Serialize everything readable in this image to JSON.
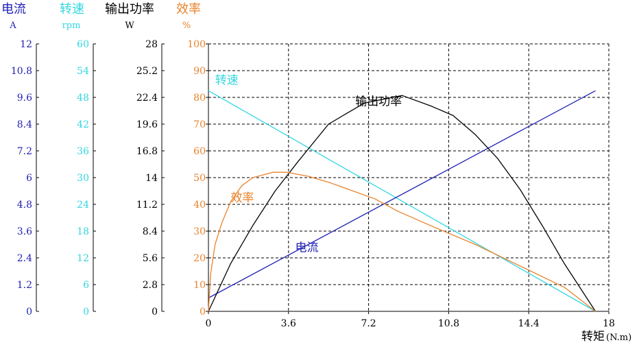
{
  "chart_data": {
    "type": "line",
    "x_axis": {
      "label": "转矩",
      "unit": "(N.m)",
      "range": [
        0,
        18
      ],
      "ticks": [
        "0",
        "3.6",
        "7.2",
        "10.8",
        "14.4",
        "18"
      ]
    },
    "y_axes": [
      {
        "id": "current",
        "title": "电流",
        "unit": "A",
        "color": "#1f1fb4",
        "range": [
          0,
          12
        ],
        "ticks": [
          "0",
          "1.2",
          "2.4",
          "3.6",
          "4.8",
          "6",
          "7.2",
          "8.4",
          "9.6",
          "10.8",
          "12"
        ]
      },
      {
        "id": "speed",
        "title": "转速",
        "unit": "rpm",
        "color": "#33d6e0",
        "range": [
          0,
          60
        ],
        "ticks": [
          "0",
          "6",
          "12",
          "18",
          "24",
          "30",
          "36",
          "42",
          "48",
          "54",
          "60"
        ]
      },
      {
        "id": "power",
        "title": "输出功率",
        "unit": "W",
        "color": "#000000",
        "range": [
          0,
          28
        ],
        "ticks": [
          "0",
          "2.8",
          "5.6",
          "8.4",
          "11.2",
          "14",
          "16.8",
          "19.6",
          "22.4",
          "25.2",
          "28"
        ]
      },
      {
        "id": "efficiency",
        "title": "效率",
        "unit": "%",
        "color": "#e8822a",
        "range": [
          0,
          100
        ],
        "ticks": [
          "0",
          "10",
          "20",
          "30",
          "40",
          "50",
          "60",
          "70",
          "80",
          "90",
          "100"
        ]
      }
    ],
    "grid": true,
    "series": [
      {
        "name": "转速",
        "axis": "speed",
        "color": "#33d6e0",
        "points": [
          [
            0,
            49.5
          ],
          [
            17.4,
            0
          ]
        ]
      },
      {
        "name": "电流",
        "axis": "current",
        "color": "#1f1fb4",
        "points": [
          [
            0,
            0.6
          ],
          [
            17.4,
            9.9
          ]
        ]
      },
      {
        "name": "输出功率",
        "axis": "power",
        "color": "#000000",
        "points": [
          [
            0,
            0
          ],
          [
            1.0,
            5.0
          ],
          [
            2.0,
            9.0
          ],
          [
            3.0,
            12.6
          ],
          [
            4.0,
            15.6
          ],
          [
            5.4,
            19.6
          ],
          [
            7.0,
            21.8
          ],
          [
            8.7,
            22.6
          ],
          [
            10.0,
            21.5
          ],
          [
            11.0,
            20.5
          ],
          [
            12.0,
            18.5
          ],
          [
            13.0,
            16.0
          ],
          [
            14.0,
            12.8
          ],
          [
            15.0,
            9.0
          ],
          [
            16.0,
            5.0
          ],
          [
            17.4,
            0
          ]
        ]
      },
      {
        "name": "效率",
        "axis": "efficiency",
        "color": "#e8822a",
        "points": [
          [
            0,
            0
          ],
          [
            0.1,
            14
          ],
          [
            0.3,
            25
          ],
          [
            0.6,
            33
          ],
          [
            1.0,
            41
          ],
          [
            1.5,
            47
          ],
          [
            2.0,
            50
          ],
          [
            2.9,
            52
          ],
          [
            3.5,
            52
          ],
          [
            4.5,
            50.5
          ],
          [
            5.5,
            48
          ],
          [
            6.5,
            45
          ],
          [
            7.5,
            42
          ],
          [
            8.5,
            37.5
          ],
          [
            10.0,
            32
          ],
          [
            12.0,
            25
          ],
          [
            14.0,
            17
          ],
          [
            16.0,
            9
          ],
          [
            17.4,
            0
          ]
        ]
      }
    ],
    "annotations": [
      {
        "text": "转速",
        "color": "#33d6e0",
        "x": 0.3,
        "y_eff": 85
      },
      {
        "text": "输出功率",
        "color": "#000000",
        "x": 6.6,
        "y_eff": 77
      },
      {
        "text": "效率",
        "color": "#e8822a",
        "x": 1.0,
        "y_eff": 41
      },
      {
        "text": "电流",
        "color": "#1f1fb4",
        "x": 3.9,
        "y_eff": 22.5
      }
    ]
  }
}
